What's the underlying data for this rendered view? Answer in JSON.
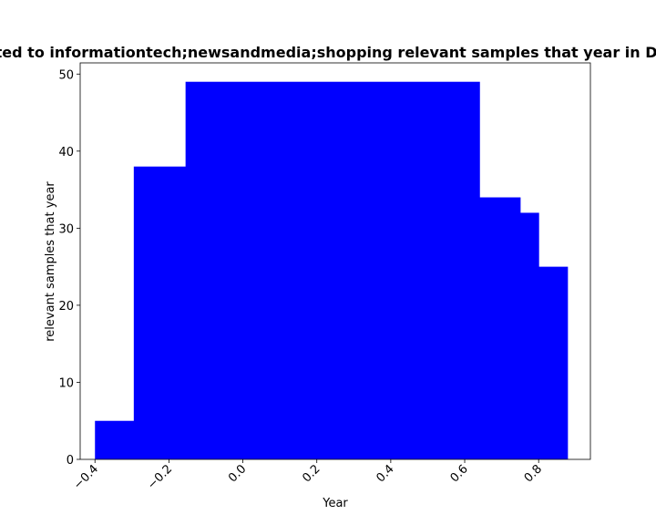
{
  "chart_data": {
    "type": "bar",
    "title": "Related to informationtech;newsandmedia;shopping relevant samples that year in DataSet",
    "xlabel": "Year",
    "ylabel": "relevant samples that year",
    "xlim": [
      -0.44,
      0.94
    ],
    "ylim": [
      0,
      51.45
    ],
    "xticks": [
      -0.4,
      -0.2,
      0.0,
      0.2,
      0.4,
      0.6,
      0.8
    ],
    "xtick_labels": [
      "−0.4",
      "−0.2",
      "0.0",
      "0.2",
      "0.4",
      "0.6",
      "0.8"
    ],
    "yticks": [
      0,
      10,
      20,
      30,
      40,
      50
    ],
    "ytick_labels": [
      "0",
      "10",
      "20",
      "30",
      "40",
      "50"
    ],
    "bar_color": "#0000ff",
    "grid": false,
    "bars": [
      {
        "x_start": -0.4,
        "x_end": -0.295,
        "value": 5
      },
      {
        "x_start": -0.295,
        "x_end": -0.155,
        "value": 38
      },
      {
        "x_start": -0.155,
        "x_end": 0.64,
        "value": 49
      },
      {
        "x_start": 0.64,
        "x_end": 0.75,
        "value": 34
      },
      {
        "x_start": 0.75,
        "x_end": 0.8,
        "value": 32
      },
      {
        "x_start": 0.8,
        "x_end": 0.878,
        "value": 25
      }
    ]
  }
}
